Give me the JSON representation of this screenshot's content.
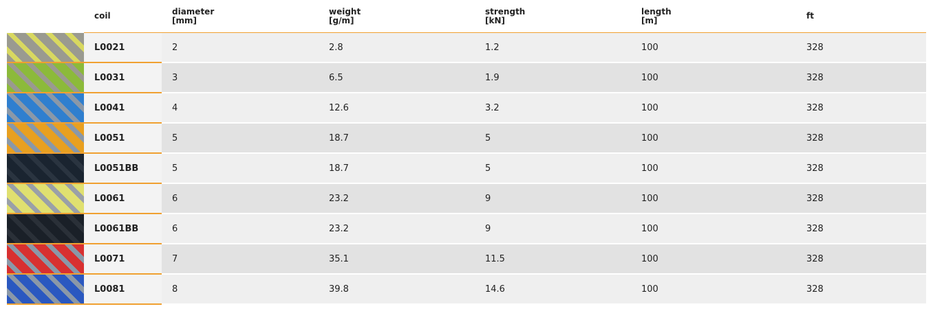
{
  "table": {
    "header": [
      {
        "label": "coil"
      },
      {
        "label": "diameter",
        "unit": "[mm]"
      },
      {
        "label": "weight",
        "unit": "[g/m]"
      },
      {
        "label": "strength",
        "unit": "[kN]"
      },
      {
        "label": "length",
        "unit": "[m]"
      },
      {
        "label": "ft"
      }
    ],
    "rows": [
      [
        "L0021",
        2,
        2.8,
        1.2,
        100,
        328
      ],
      [
        "L0031",
        3,
        6.5,
        1.9,
        100,
        328
      ],
      [
        "L0041",
        4,
        12.6,
        3.2,
        100,
        328
      ],
      [
        "L0051",
        5,
        18.7,
        5,
        100,
        328
      ],
      [
        "L0051BB",
        5,
        18.7,
        5,
        100,
        328
      ],
      [
        "L0061",
        6,
        23.2,
        9,
        100,
        328
      ],
      [
        "L0061BB",
        6,
        23.2,
        9,
        100,
        328
      ],
      [
        "L0071",
        7,
        35.1,
        11.5,
        100,
        328
      ],
      [
        "L0081",
        8,
        39.8,
        14.6,
        100,
        328
      ]
    ]
  }
}
